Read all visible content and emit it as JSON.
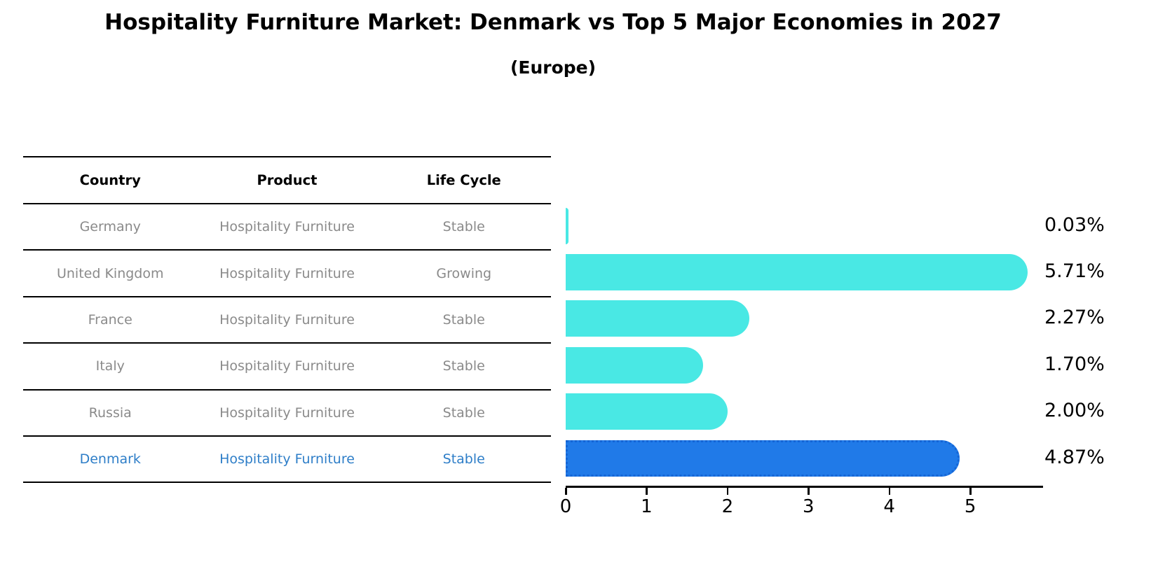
{
  "title": "Hospitality Furniture Market: Denmark vs Top 5 Major Economies in 2027",
  "subtitle": "(Europe)",
  "table": {
    "headers": [
      "Country",
      "Product",
      "Life Cycle"
    ],
    "rows": [
      {
        "country": "Germany",
        "product": "Hospitality Furniture",
        "life_cycle": "Stable",
        "highlighted": false
      },
      {
        "country": "United Kingdom",
        "product": "Hospitality Furniture",
        "life_cycle": "Growing",
        "highlighted": false
      },
      {
        "country": "France",
        "product": "Hospitality Furniture",
        "life_cycle": "Stable",
        "highlighted": false
      },
      {
        "country": "Italy",
        "product": "Hospitality Furniture",
        "life_cycle": "Stable",
        "highlighted": false
      },
      {
        "country": "Russia",
        "product": "Hospitality Furniture",
        "life_cycle": "Stable",
        "highlighted": false
      },
      {
        "country": "Denmark",
        "product": "Hospitality Furniture",
        "life_cycle": "Stable",
        "highlighted": true
      }
    ]
  },
  "chart_data": {
    "type": "bar",
    "orientation": "horizontal",
    "title": "Hospitality Furniture Market: Denmark vs Top 5 Major Economies in 2027 (Europe)",
    "categories": [
      "Germany",
      "United Kingdom",
      "France",
      "Italy",
      "Russia",
      "Denmark"
    ],
    "values": [
      0.03,
      5.71,
      2.27,
      1.7,
      2.0,
      4.87
    ],
    "value_labels": [
      "0.03%",
      "5.71%",
      "2.27%",
      "1.70%",
      "2.00%",
      "4.87%"
    ],
    "highlight_index": 5,
    "xlabel": "",
    "ylabel": "",
    "xlim": [
      0,
      5.9
    ],
    "xticks": [
      0,
      1,
      2,
      3,
      4,
      5
    ],
    "grid": false,
    "legend": false
  },
  "colors": {
    "bar": "#49e8e4",
    "highlight_fill": "#207ae8",
    "highlight_border": "#1565d5",
    "highlight_text": "#2e7ec8",
    "row_text": "#8a8a8a",
    "header_text": "#000000",
    "axis": "#000000"
  }
}
